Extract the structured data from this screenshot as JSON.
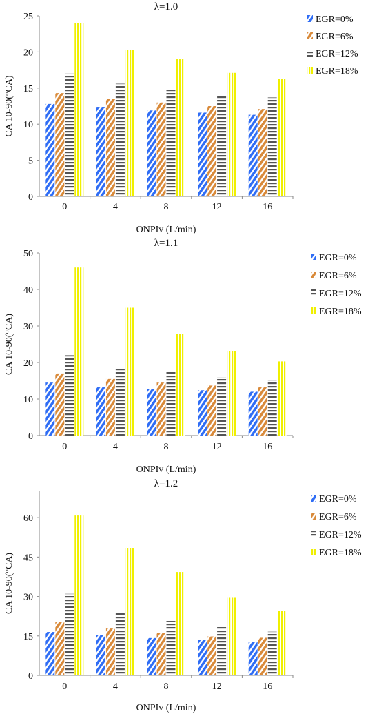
{
  "series_colors": {
    "EGR=0%": "#2f6df5",
    "EGR=6%": "#d98a3a",
    "EGR=12%": "#555555",
    "EGR=18%": "#f0f000"
  },
  "chart_data": [
    {
      "type": "bar",
      "title": "λ=1.0",
      "xlabel": "ONPIv (L/min)",
      "ylabel": "CA 10-90(°CA)",
      "categories": [
        "0",
        "4",
        "8",
        "12",
        "16"
      ],
      "ylim": [
        0,
        25
      ],
      "yticks": [
        "0",
        "5",
        "10",
        "15",
        "20",
        "25"
      ],
      "legend_position": "right",
      "grid": false,
      "series": [
        {
          "name": "EGR=0%",
          "values": [
            12.8,
            12.4,
            11.9,
            11.6,
            11.3
          ]
        },
        {
          "name": "EGR=6%",
          "values": [
            14.3,
            13.5,
            13.0,
            12.5,
            12.1
          ]
        },
        {
          "name": "EGR=12%",
          "values": [
            17.0,
            15.6,
            14.8,
            14.0,
            13.7
          ]
        },
        {
          "name": "EGR=18%",
          "values": [
            24.0,
            20.3,
            19.0,
            17.1,
            16.3
          ]
        }
      ]
    },
    {
      "type": "bar",
      "title": "λ=1.1",
      "xlabel": "ONPIv (L/min)",
      "ylabel": "CA 10-90(°CA)",
      "categories": [
        "0",
        "4",
        "8",
        "12",
        "16"
      ],
      "ylim": [
        0,
        50
      ],
      "yticks": [
        "0",
        "10",
        "20",
        "30",
        "40",
        "50"
      ],
      "legend_position": "right",
      "grid": false,
      "series": [
        {
          "name": "EGR=0%",
          "values": [
            14.5,
            13.2,
            12.8,
            12.4,
            12.0
          ]
        },
        {
          "name": "EGR=6%",
          "values": [
            17.0,
            15.5,
            14.5,
            13.7,
            13.2
          ]
        },
        {
          "name": "EGR=12%",
          "values": [
            22.0,
            18.8,
            17.5,
            16.0,
            15.2
          ]
        },
        {
          "name": "EGR=18%",
          "values": [
            46.0,
            35.0,
            27.8,
            23.2,
            20.3
          ]
        }
      ]
    },
    {
      "type": "bar",
      "title": "λ=1.2",
      "xlabel": "ONPIv (L/min)",
      "ylabel": "CA 10-90(°CA)",
      "categories": [
        "0",
        "4",
        "8",
        "12",
        "16"
      ],
      "ylim": [
        0,
        70
      ],
      "yticks": [
        "0",
        "15",
        "30",
        "45",
        "60"
      ],
      "legend_position": "right",
      "grid": false,
      "series": [
        {
          "name": "EGR=0%",
          "values": [
            16.5,
            15.3,
            14.2,
            13.4,
            12.8
          ]
        },
        {
          "name": "EGR=6%",
          "values": [
            20.2,
            17.8,
            16.0,
            14.8,
            14.3
          ]
        },
        {
          "name": "EGR=12%",
          "values": [
            31.0,
            24.0,
            20.7,
            18.8,
            16.6
          ]
        },
        {
          "name": "EGR=18%",
          "values": [
            60.8,
            48.5,
            39.3,
            29.5,
            24.6
          ]
        }
      ]
    }
  ]
}
